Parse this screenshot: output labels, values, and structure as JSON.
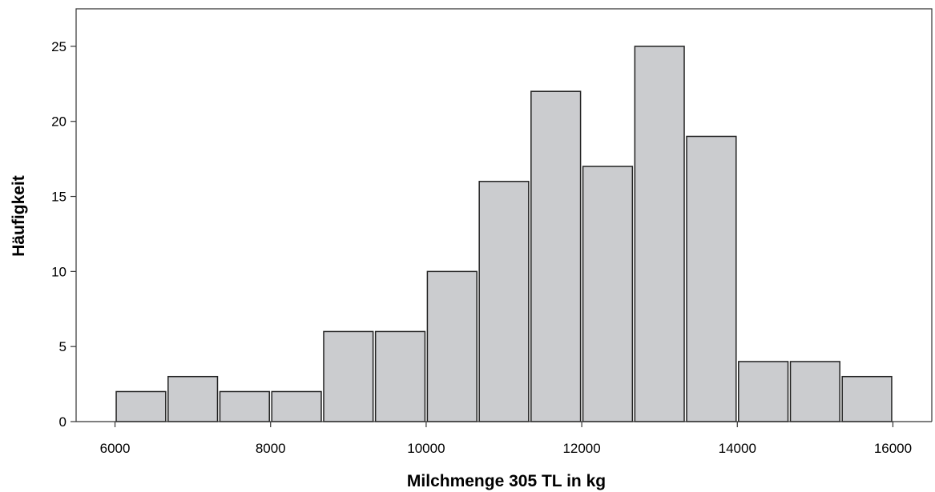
{
  "chart_data": {
    "type": "bar",
    "subtype": "histogram",
    "xlabel": "Milchmenge 305 TL in kg",
    "ylabel": "Häufigkeit",
    "xlim": [
      5500,
      16500
    ],
    "ylim": [
      0,
      27.5
    ],
    "x_ticks": [
      6000,
      8000,
      10000,
      12000,
      14000,
      16000
    ],
    "y_ticks": [
      0,
      5,
      10,
      15,
      20,
      25
    ],
    "bins": [
      [
        6000,
        6667
      ],
      [
        6667,
        7333
      ],
      [
        7333,
        8000
      ],
      [
        8000,
        8667
      ],
      [
        8667,
        9333
      ],
      [
        9333,
        10000
      ],
      [
        10000,
        10667
      ],
      [
        10667,
        11333
      ],
      [
        11333,
        12000
      ],
      [
        12000,
        12667
      ],
      [
        12667,
        13333
      ],
      [
        13333,
        14000
      ],
      [
        14000,
        14667
      ],
      [
        14667,
        15333
      ],
      [
        15333,
        16000
      ]
    ],
    "values": [
      2,
      3,
      2,
      2,
      6,
      6,
      10,
      16,
      22,
      17,
      25,
      19,
      4,
      4,
      3
    ],
    "bar_color": "#cbcccf",
    "bar_edge_color": "#222222",
    "grid": false,
    "legend": "none"
  }
}
